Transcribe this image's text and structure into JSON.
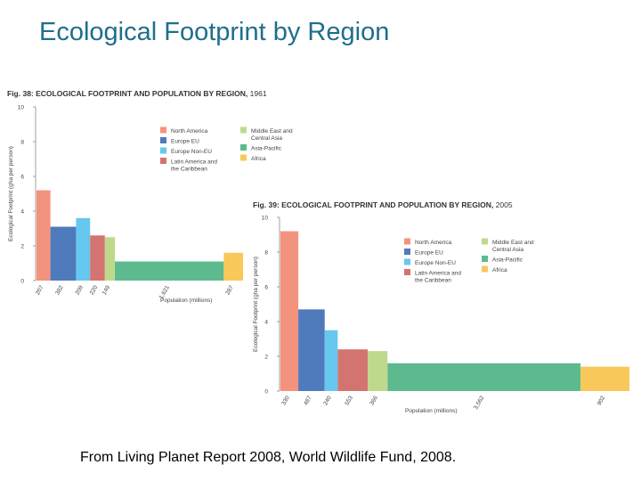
{
  "slide": {
    "title": "Ecological Footprint by Region",
    "caption": "From Living Planet Report 2008, World Wildlife Fund, 2008."
  },
  "colors": {
    "North America": "#f4937d",
    "Europe EU": "#4f7bbd",
    "Europe Non-EU": "#66c7ef",
    "Latin America and the Caribbean": "#d47471",
    "Middle East and Central Asia": "#bfd98c",
    "Asia-Pacific": "#5dba8e",
    "Africa": "#f8c85a"
  },
  "chart_data": [
    {
      "type": "bar",
      "variant": "variable-width",
      "fig_label": "Fig. 38:",
      "title_bold": "ECOLOGICAL FOOTPRINT AND POPULATION BY REGION,",
      "year": "1961",
      "ylabel": "Ecological Footprint (gha per person)",
      "xlabel": "Population (millions)",
      "ylim": [
        0,
        10
      ],
      "yticks": [
        0,
        2,
        4,
        6,
        8,
        10
      ],
      "legend_position": "top-center",
      "legend": [
        {
          "name": "North America",
          "lines": [
            "North America"
          ]
        },
        {
          "name": "Europe EU",
          "lines": [
            "Europe EU"
          ]
        },
        {
          "name": "Europe Non-EU",
          "lines": [
            "Europe Non-EU"
          ]
        },
        {
          "name": "Latin America and the Caribbean",
          "lines": [
            "Latin America and",
            "the Caribbean"
          ]
        },
        {
          "name": "Middle East and Central Asia",
          "lines": [
            "Middle East and",
            "Central Asia"
          ]
        },
        {
          "name": "Asia-Pacific",
          "lines": [
            "Asia-Pacific"
          ]
        },
        {
          "name": "Africa",
          "lines": [
            "Africa"
          ]
        }
      ],
      "bars": [
        {
          "region": "North America",
          "population": 207,
          "label": "207",
          "value": 5.2
        },
        {
          "region": "Europe EU",
          "population": 382,
          "label": "382",
          "value": 3.1
        },
        {
          "region": "Europe Non-EU",
          "population": 209,
          "label": "209",
          "value": 3.6
        },
        {
          "region": "Latin America and the Caribbean",
          "population": 220,
          "label": "220",
          "value": 2.6
        },
        {
          "region": "Middle East and Central Asia",
          "population": 149,
          "label": "149",
          "value": 2.5
        },
        {
          "region": "Asia-Pacific",
          "population": 1621,
          "label": "1,621",
          "value": 1.1
        },
        {
          "region": "Africa",
          "population": 287,
          "label": "287",
          "value": 1.6
        }
      ]
    },
    {
      "type": "bar",
      "variant": "variable-width",
      "fig_label": "Fig. 39:",
      "title_bold": "ECOLOGICAL FOOTPRINT AND POPULATION BY REGION,",
      "year": "2005",
      "ylabel": "Ecological Footprint (gha per person)",
      "xlabel": "Population (millions)",
      "ylim": [
        0,
        10
      ],
      "yticks": [
        0,
        2,
        4,
        6,
        8,
        10
      ],
      "legend_position": "top-right",
      "legend": [
        {
          "name": "North America",
          "lines": [
            "North America"
          ]
        },
        {
          "name": "Europe EU",
          "lines": [
            "Europe EU"
          ]
        },
        {
          "name": "Europe Non-EU",
          "lines": [
            "Europe Non-EU"
          ]
        },
        {
          "name": "Latin America and the Caribbean",
          "lines": [
            "Latin America and",
            "the Caribbean"
          ]
        },
        {
          "name": "Middle East and Central Asia",
          "lines": [
            "Middle East and",
            "Central Asia"
          ]
        },
        {
          "name": "Asia-Pacific",
          "lines": [
            "Asia-Pacific"
          ]
        },
        {
          "name": "Africa",
          "lines": [
            "Africa"
          ]
        }
      ],
      "bars": [
        {
          "region": "North America",
          "population": 330,
          "label": "330",
          "value": 9.2
        },
        {
          "region": "Europe EU",
          "population": 487,
          "label": "487",
          "value": 4.7
        },
        {
          "region": "Europe Non-EU",
          "population": 240,
          "label": "240",
          "value": 3.5
        },
        {
          "region": "Latin America and the Caribbean",
          "population": 553,
          "label": "553",
          "value": 2.4
        },
        {
          "region": "Middle East and Central Asia",
          "population": 366,
          "label": "366",
          "value": 2.3
        },
        {
          "region": "Asia-Pacific",
          "population": 3562,
          "label": "3,562",
          "value": 1.6
        },
        {
          "region": "Africa",
          "population": 902,
          "label": "902",
          "value": 1.4
        }
      ]
    }
  ]
}
